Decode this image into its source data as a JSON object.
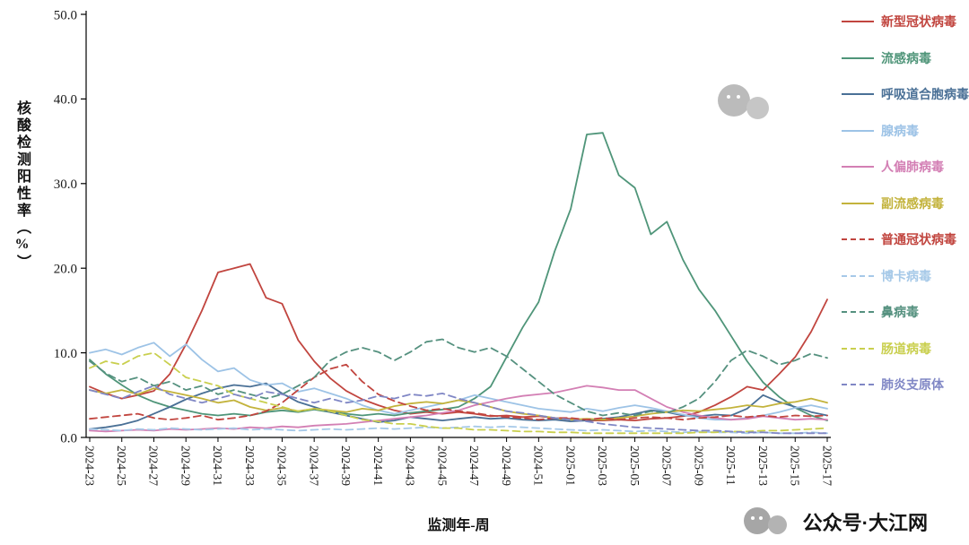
{
  "watermark": {
    "text": "公众号·大江网"
  },
  "chart_data": {
    "type": "line",
    "title": "",
    "xlabel": "监测年-周",
    "ylabel": "核酸检测阳性率（%）",
    "ylim": [
      0,
      50
    ],
    "yticks": [
      "0.0",
      "10.0",
      "20.0",
      "30.0",
      "40.0",
      "50.0"
    ],
    "grid": false,
    "legend_position": "right",
    "x": [
      "2024-23",
      "2024-24",
      "2024-25",
      "2024-26",
      "2024-27",
      "2024-28",
      "2024-29",
      "2024-30",
      "2024-31",
      "2024-32",
      "2024-33",
      "2024-34",
      "2024-35",
      "2024-36",
      "2024-37",
      "2024-38",
      "2024-39",
      "2024-40",
      "2024-41",
      "2024-42",
      "2024-43",
      "2024-44",
      "2024-45",
      "2024-46",
      "2024-47",
      "2024-48",
      "2024-49",
      "2024-50",
      "2024-51",
      "2024-52",
      "2025-01",
      "2025-02",
      "2025-03",
      "2025-04",
      "2025-05",
      "2025-06",
      "2025-07",
      "2025-08",
      "2025-09",
      "2025-10",
      "2025-11",
      "2025-12",
      "2025-13",
      "2025-14",
      "2025-15",
      "2025-16",
      "2025-17"
    ],
    "x_tick_labels": [
      "2024-23",
      "2024-25",
      "2024-27",
      "2024-29",
      "2024-31",
      "2024-33",
      "2024-35",
      "2024-37",
      "2024-39",
      "2024-41",
      "2024-43",
      "2024-45",
      "2024-47",
      "2024-49",
      "2024-51",
      "2025-01",
      "2025-03",
      "2025-05",
      "2025-07",
      "2025-09",
      "2025-11",
      "2025-13",
      "2025-15",
      "2025-17"
    ],
    "series": [
      {
        "name": "新型冠状病毒",
        "color": "#c1453f",
        "dashed": false,
        "values": [
          6.0,
          5.2,
          4.6,
          5.0,
          5.5,
          7.5,
          11.0,
          15.0,
          19.5,
          20.0,
          20.5,
          16.5,
          15.8,
          11.5,
          9.0,
          7.0,
          5.5,
          4.5,
          3.8,
          3.2,
          2.8,
          3.0,
          2.8,
          3.0,
          2.8,
          2.5,
          2.6,
          2.4,
          2.5,
          2.3,
          2.2,
          2.0,
          2.0,
          2.1,
          2.0,
          2.2,
          2.3,
          2.5,
          3.0,
          3.8,
          4.8,
          6.0,
          5.6,
          7.5,
          9.5,
          12.5,
          16.3
        ]
      },
      {
        "name": "流感病毒",
        "color": "#4f9579",
        "dashed": false,
        "values": [
          9.2,
          7.5,
          6.2,
          5.0,
          4.2,
          3.6,
          3.2,
          2.8,
          2.6,
          2.8,
          2.6,
          3.0,
          3.2,
          3.0,
          3.3,
          3.0,
          2.8,
          2.6,
          2.8,
          2.6,
          2.9,
          3.1,
          3.3,
          3.6,
          4.6,
          6.0,
          9.5,
          13.0,
          16.0,
          22.0,
          27.0,
          35.8,
          36.0,
          31.0,
          29.5,
          24.0,
          25.5,
          21.0,
          17.5,
          15.0,
          12.0,
          9.0,
          6.5,
          4.8,
          3.5,
          2.6,
          2.0
        ]
      },
      {
        "name": "呼吸道合胞病毒",
        "color": "#4a7096",
        "dashed": false,
        "values": [
          1.0,
          1.2,
          1.5,
          2.0,
          2.8,
          3.6,
          4.5,
          5.2,
          5.8,
          6.2,
          6.0,
          6.4,
          5.2,
          4.2,
          3.6,
          3.0,
          2.6,
          2.2,
          1.8,
          2.0,
          2.4,
          2.2,
          2.0,
          2.2,
          2.4,
          2.2,
          2.3,
          2.1,
          2.0,
          2.1,
          1.9,
          2.0,
          2.2,
          2.4,
          2.8,
          3.2,
          3.0,
          2.6,
          2.5,
          2.7,
          2.6,
          3.4,
          5.0,
          4.2,
          3.6,
          3.0,
          2.6
        ]
      },
      {
        "name": "腺病毒",
        "color": "#9dc3e6",
        "dashed": false,
        "values": [
          10.0,
          10.4,
          9.8,
          10.6,
          11.2,
          9.6,
          11.0,
          9.2,
          7.8,
          8.2,
          6.8,
          6.2,
          6.4,
          5.4,
          5.8,
          5.2,
          4.6,
          3.8,
          3.2,
          2.8,
          3.2,
          3.6,
          4.0,
          4.4,
          5.0,
          4.6,
          4.2,
          3.8,
          3.4,
          3.2,
          3.0,
          3.4,
          3.1,
          3.5,
          3.8,
          3.5,
          3.1,
          2.7,
          2.3,
          2.1,
          2.1,
          2.3,
          2.6,
          3.0,
          3.5,
          3.8,
          3.4
        ]
      },
      {
        "name": "人偏肺病毒",
        "color": "#d37fb4",
        "dashed": false,
        "values": [
          0.8,
          0.7,
          0.8,
          0.9,
          0.8,
          1.0,
          0.9,
          1.0,
          1.1,
          1.0,
          1.2,
          1.1,
          1.3,
          1.2,
          1.4,
          1.5,
          1.6,
          1.8,
          2.0,
          2.2,
          2.4,
          2.6,
          2.9,
          3.2,
          3.8,
          4.2,
          4.6,
          4.9,
          5.1,
          5.3,
          5.7,
          6.1,
          5.9,
          5.6,
          5.6,
          4.6,
          3.6,
          3.0,
          2.6,
          2.3,
          2.1,
          2.2,
          2.5,
          2.3,
          2.1,
          2.2,
          2.1
        ]
      },
      {
        "name": "副流感病毒",
        "color": "#c3b33c",
        "dashed": false,
        "values": [
          5.6,
          5.2,
          5.6,
          5.1,
          5.8,
          5.4,
          5.0,
          4.6,
          4.1,
          4.4,
          3.6,
          3.2,
          3.5,
          3.1,
          3.4,
          3.2,
          3.0,
          3.4,
          3.2,
          3.7,
          4.0,
          4.2,
          4.0,
          4.4,
          4.1,
          3.6,
          3.1,
          2.8,
          2.6,
          2.3,
          2.1,
          2.2,
          2.1,
          2.3,
          2.5,
          2.8,
          3.0,
          3.2,
          3.1,
          3.3,
          3.5,
          3.8,
          3.6,
          4.0,
          4.2,
          4.6,
          4.1
        ]
      },
      {
        "name": "普通冠状病毒",
        "color": "#c1453f",
        "dashed": true,
        "values": [
          2.2,
          2.4,
          2.6,
          2.8,
          2.3,
          2.1,
          2.3,
          2.6,
          2.1,
          2.3,
          2.6,
          3.1,
          4.1,
          5.6,
          7.1,
          8.1,
          8.6,
          6.6,
          5.1,
          4.3,
          3.7,
          3.2,
          3.4,
          3.1,
          2.9,
          2.6,
          2.4,
          2.3,
          2.1,
          2.3,
          2.3,
          2.1,
          2.3,
          2.1,
          2.3,
          2.4,
          2.3,
          2.1,
          2.3,
          2.4,
          2.6,
          2.4,
          2.6,
          2.4,
          2.6,
          2.5,
          2.6
        ]
      },
      {
        "name": "博卡病毒",
        "color": "#a6c9e8",
        "dashed": true,
        "values": [
          1.0,
          0.9,
          0.8,
          1.0,
          0.9,
          1.1,
          1.0,
          0.9,
          1.0,
          1.1,
          0.9,
          1.0,
          0.9,
          0.8,
          0.9,
          1.0,
          0.9,
          1.0,
          1.1,
          1.0,
          1.1,
          1.2,
          1.1,
          1.2,
          1.3,
          1.2,
          1.3,
          1.2,
          1.1,
          1.0,
          0.9,
          0.8,
          0.9,
          0.8,
          0.7,
          0.8,
          0.7,
          0.6,
          0.7,
          0.6,
          0.6,
          0.5,
          0.6,
          0.5,
          0.5,
          0.6,
          0.5
        ]
      },
      {
        "name": "鼻病毒",
        "color": "#55917f",
        "dashed": true,
        "values": [
          9.0,
          7.6,
          6.6,
          7.1,
          6.1,
          6.6,
          5.6,
          6.1,
          5.1,
          5.6,
          5.1,
          4.6,
          5.1,
          6.1,
          7.1,
          9.1,
          10.1,
          10.6,
          10.1,
          9.1,
          10.1,
          11.3,
          11.6,
          10.6,
          10.1,
          10.6,
          9.6,
          8.1,
          6.6,
          5.1,
          4.1,
          3.1,
          2.6,
          2.9,
          2.6,
          3.1,
          2.9,
          3.6,
          4.6,
          6.6,
          9.1,
          10.3,
          9.6,
          8.6,
          9.1,
          9.9,
          9.4
        ]
      },
      {
        "name": "肠道病毒",
        "color": "#c9cf4e",
        "dashed": true,
        "values": [
          8.2,
          9.0,
          8.6,
          9.6,
          10.0,
          8.6,
          7.1,
          6.6,
          6.1,
          5.1,
          4.6,
          4.1,
          3.6,
          3.1,
          3.4,
          3.1,
          2.6,
          2.1,
          1.9,
          1.6,
          1.6,
          1.3,
          1.1,
          1.1,
          0.9,
          0.9,
          0.8,
          0.7,
          0.7,
          0.6,
          0.6,
          0.5,
          0.5,
          0.5,
          0.5,
          0.5,
          0.5,
          0.5,
          0.6,
          0.6,
          0.7,
          0.7,
          0.8,
          0.8,
          0.9,
          1.0,
          1.1
        ]
      },
      {
        "name": "肺炎支原体",
        "color": "#8087c5",
        "dashed": true,
        "values": [
          5.6,
          5.1,
          4.6,
          5.4,
          6.1,
          5.1,
          4.6,
          4.1,
          4.6,
          5.1,
          4.6,
          5.4,
          5.1,
          4.6,
          4.1,
          4.6,
          4.1,
          4.4,
          4.9,
          4.6,
          5.1,
          4.9,
          5.2,
          4.6,
          4.1,
          3.6,
          3.1,
          2.9,
          2.6,
          2.3,
          2.1,
          1.9,
          1.6,
          1.4,
          1.2,
          1.1,
          1.0,
          0.9,
          0.8,
          0.8,
          0.7,
          0.6,
          0.6,
          0.5,
          0.5,
          0.5,
          0.5
        ]
      }
    ]
  }
}
